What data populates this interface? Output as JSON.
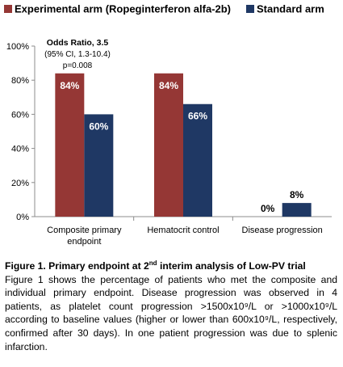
{
  "chart_data": {
    "type": "bar",
    "categories": [
      [
        "Composite primary",
        "endpoint"
      ],
      [
        "Hematocrit control"
      ],
      [
        "Disease progression"
      ]
    ],
    "series": [
      {
        "name": "Experimental arm (Ropeginterferon alfa-2b)",
        "color": "#953735",
        "values": [
          84,
          84,
          0
        ]
      },
      {
        "name": "Standard arm",
        "color": "#1F3864",
        "values": [
          60,
          66,
          8
        ]
      }
    ],
    "data_labels": [
      [
        "84%",
        "60%"
      ],
      [
        "84%",
        "66%"
      ],
      [
        "0%",
        "8%"
      ]
    ],
    "y_ticks": [
      "0%",
      "20%",
      "40%",
      "60%",
      "80%",
      "100%"
    ],
    "ylim": [
      0,
      100
    ],
    "legend_position": "top",
    "grid": false,
    "annotation": {
      "title": "Odds Ratio, 3.5",
      "lines": [
        "(95% CI, 1.3-10.4)",
        "p=0.008"
      ]
    }
  },
  "caption": {
    "title_prefix": "Figure 1. Primary endpoint at 2",
    "title_sup": "nd",
    "title_suffix": " interim analysis of Low-PV trial",
    "body": "Figure 1 shows the percentage of patients who met the composite and individual primary endpoint. Disease progression was observed in 4 patients, as platelet count progression >1500x10⁹/L or >1000x10⁹/L according to baseline values (higher or lower than 600x10⁹/L, respectively, confirmed after 30 days). In one patient progression was due to splenic infarction."
  }
}
